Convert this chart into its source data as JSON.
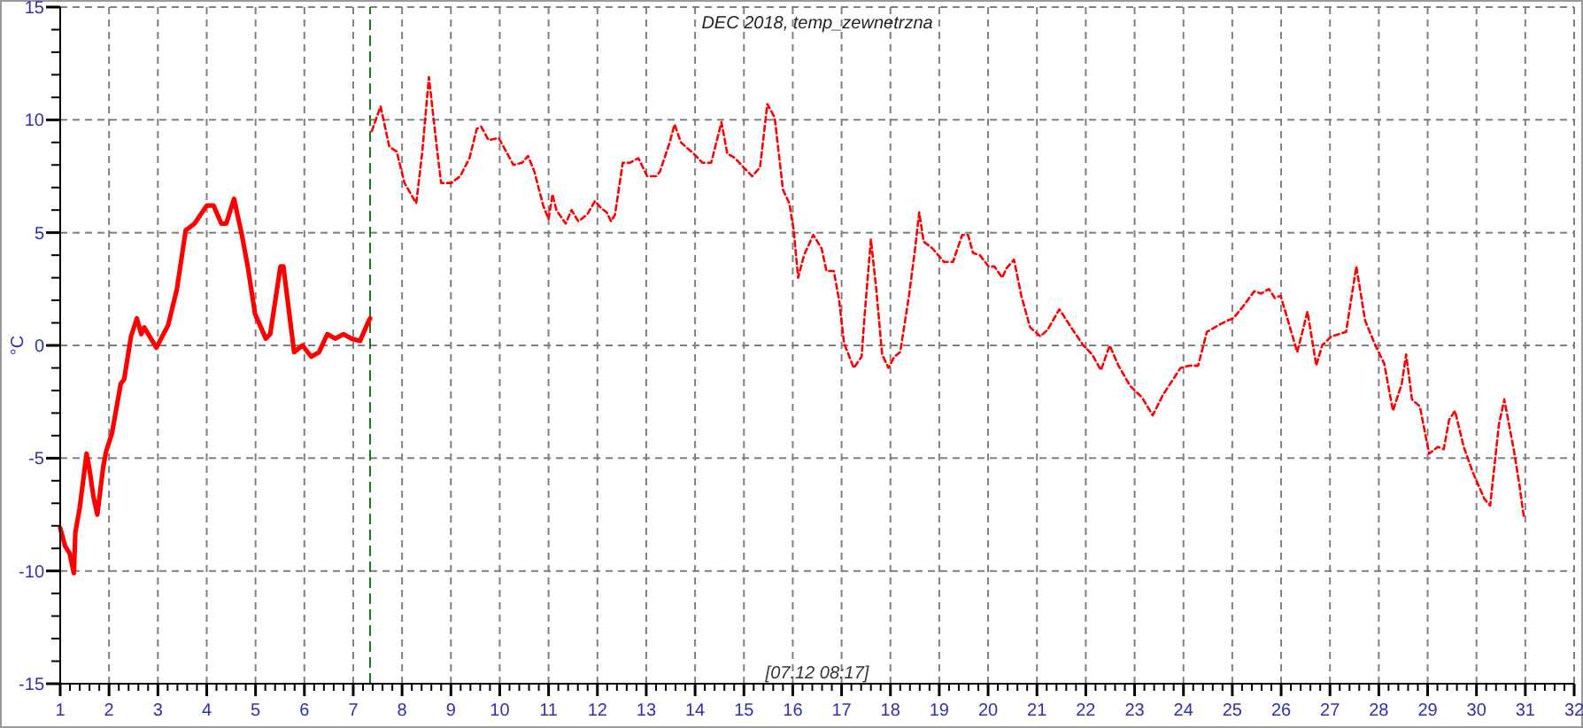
{
  "chart_data": {
    "type": "line",
    "title": "DEC 2018, temp_zewnetrzna",
    "ylabel": "°C",
    "xlim": [
      1,
      32
    ],
    "ylim": [
      -15,
      15
    ],
    "xticks": [
      1,
      {
        "value": 1.2,
        "label": null
      },
      {
        "value": 1.4,
        "label": null
      },
      {
        "value": 1.6,
        "label": null
      },
      {
        "value": 1.8,
        "label": null
      },
      2,
      {
        "value": 2.2,
        "label": null
      },
      {
        "value": 2.4,
        "label": null
      },
      {
        "value": 2.6,
        "label": null
      },
      {
        "value": 2.8,
        "label": null
      },
      3,
      {
        "value": 3.2,
        "label": null
      },
      {
        "value": 3.4,
        "label": null
      },
      {
        "value": 3.6,
        "label": null
      },
      {
        "value": 3.8,
        "label": null
      },
      4,
      {
        "value": 4.2,
        "label": null
      },
      {
        "value": 4.4,
        "label": null
      },
      {
        "value": 4.6,
        "label": null
      },
      {
        "value": 4.8,
        "label": null
      },
      5,
      {
        "value": 5.2,
        "label": null
      },
      {
        "value": 5.4,
        "label": null
      },
      {
        "value": 5.6,
        "label": null
      },
      {
        "value": 5.8,
        "label": null
      },
      6,
      {
        "value": 6.2,
        "label": null
      },
      {
        "value": 6.4,
        "label": null
      },
      {
        "value": 6.6,
        "label": null
      },
      {
        "value": 6.8,
        "label": null
      },
      7,
      {
        "value": 7.2,
        "label": null
      },
      {
        "value": 7.4,
        "label": null
      },
      {
        "value": 7.6,
        "label": null
      },
      {
        "value": 7.8,
        "label": null
      },
      8,
      {
        "value": 8.2,
        "label": null
      },
      {
        "value": 8.4,
        "label": null
      },
      {
        "value": 8.6,
        "label": null
      },
      {
        "value": 8.8,
        "label": null
      },
      9,
      {
        "value": 9.2,
        "label": null
      },
      {
        "value": 9.4,
        "label": null
      },
      {
        "value": 9.6,
        "label": null
      },
      {
        "value": 9.8,
        "label": null
      },
      10,
      {
        "value": 10.2,
        "label": null
      },
      {
        "value": 10.4,
        "label": null
      },
      {
        "value": 10.6,
        "label": null
      },
      {
        "value": 10.8,
        "label": null
      },
      11,
      {
        "value": 11.2,
        "label": null
      },
      {
        "value": 11.4,
        "label": null
      },
      {
        "value": 11.6,
        "label": null
      },
      {
        "value": 11.8,
        "label": null
      },
      12,
      {
        "value": 12.2,
        "label": null
      },
      {
        "value": 12.4,
        "label": null
      },
      {
        "value": 12.6,
        "label": null
      },
      {
        "value": 12.8,
        "label": null
      },
      13,
      {
        "value": 13.2,
        "label": null
      },
      {
        "value": 13.4,
        "label": null
      },
      {
        "value": 13.6,
        "label": null
      },
      {
        "value": 13.8,
        "label": null
      },
      14,
      {
        "value": 14.2,
        "label": null
      },
      {
        "value": 14.4,
        "label": null
      },
      {
        "value": 14.6,
        "label": null
      },
      {
        "value": 14.8,
        "label": null
      },
      15,
      {
        "value": 15.2,
        "label": null
      },
      {
        "value": 15.4,
        "label": null
      },
      {
        "value": 15.6,
        "label": null
      },
      {
        "value": 15.8,
        "label": null
      },
      16,
      {
        "value": 16.2,
        "label": null
      },
      {
        "value": 16.4,
        "label": null
      },
      {
        "value": 16.6,
        "label": null
      },
      {
        "value": 16.8,
        "label": null
      },
      17,
      {
        "value": 17.2,
        "label": null
      },
      {
        "value": 17.4,
        "label": null
      },
      {
        "value": 17.6,
        "label": null
      },
      {
        "value": 17.8,
        "label": null
      },
      18,
      {
        "value": 18.2,
        "label": null
      },
      {
        "value": 18.4,
        "label": null
      },
      {
        "value": 18.6,
        "label": null
      },
      {
        "value": 18.8,
        "label": null
      },
      19,
      {
        "value": 19.2,
        "label": null
      },
      {
        "value": 19.4,
        "label": null
      },
      {
        "value": 19.6,
        "label": null
      },
      {
        "value": 19.8,
        "label": null
      },
      20,
      {
        "value": 20.2,
        "label": null
      },
      {
        "value": 20.4,
        "label": null
      },
      {
        "value": 20.6,
        "label": null
      },
      {
        "value": 20.8,
        "label": null
      },
      21,
      {
        "value": 21.2,
        "label": null
      },
      {
        "value": 21.4,
        "label": null
      },
      {
        "value": 21.6,
        "label": null
      },
      {
        "value": 21.8,
        "label": null
      },
      22,
      {
        "value": 22.2,
        "label": null
      },
      {
        "value": 22.4,
        "label": null
      },
      {
        "value": 22.6,
        "label": null
      },
      {
        "value": 22.8,
        "label": null
      },
      23,
      {
        "value": 23.2,
        "label": null
      },
      {
        "value": 23.4,
        "label": null
      },
      {
        "value": 23.6,
        "label": null
      },
      {
        "value": 23.8,
        "label": null
      },
      24,
      {
        "value": 24.2,
        "label": null
      },
      {
        "value": 24.4,
        "label": null
      },
      {
        "value": 24.6,
        "label": null
      },
      {
        "value": 24.8,
        "label": null
      },
      25,
      {
        "value": 25.2,
        "label": null
      },
      {
        "value": 25.4,
        "label": null
      },
      {
        "value": 25.6,
        "label": null
      },
      {
        "value": 25.8,
        "label": null
      },
      26,
      {
        "value": 26.2,
        "label": null
      },
      {
        "value": 26.4,
        "label": null
      },
      {
        "value": 26.6,
        "label": null
      },
      {
        "value": 26.8,
        "label": null
      },
      27,
      {
        "value": 27.2,
        "label": null
      },
      {
        "value": 27.4,
        "label": null
      },
      {
        "value": 27.6,
        "label": null
      },
      {
        "value": 27.8,
        "label": null
      },
      28,
      {
        "value": 28.2,
        "label": null
      },
      {
        "value": 28.4,
        "label": null
      },
      {
        "value": 28.6,
        "label": null
      },
      {
        "value": 28.8,
        "label": null
      },
      29,
      {
        "value": 29.2,
        "label": null
      },
      {
        "value": 29.4,
        "label": null
      },
      {
        "value": 29.6,
        "label": null
      },
      {
        "value": 29.8,
        "label": null
      },
      30,
      {
        "value": 30.2,
        "label": null
      },
      {
        "value": 30.4,
        "label": null
      },
      {
        "value": 30.6,
        "label": null
      },
      {
        "value": 30.8,
        "label": null
      },
      31,
      {
        "value": 31.2,
        "label": null
      },
      {
        "value": 31.4,
        "label": null
      },
      {
        "value": 31.6,
        "label": null
      },
      {
        "value": 31.8,
        "label": null
      },
      32
    ],
    "yticks": [
      -15,
      {
        "value": -14,
        "label": null
      },
      {
        "value": -13,
        "label": null
      },
      {
        "value": -12,
        "label": null
      },
      {
        "value": -11,
        "label": null
      },
      -10,
      {
        "value": -9,
        "label": null
      },
      {
        "value": -8,
        "label": null
      },
      {
        "value": -7,
        "label": null
      },
      {
        "value": -6,
        "label": null
      },
      -5,
      {
        "value": -4,
        "label": null
      },
      {
        "value": -3,
        "label": null
      },
      {
        "value": -2,
        "label": null
      },
      {
        "value": -1,
        "label": null
      },
      0,
      {
        "value": 1,
        "label": null
      },
      {
        "value": 2,
        "label": null
      },
      {
        "value": 3,
        "label": null
      },
      {
        "value": 4,
        "label": null
      },
      5,
      {
        "value": 6,
        "label": null
      },
      {
        "value": 7,
        "label": null
      },
      {
        "value": 8,
        "label": null
      },
      {
        "value": 9,
        "label": null
      },
      10,
      {
        "value": 11,
        "label": null
      },
      {
        "value": 12,
        "label": null
      },
      {
        "value": 13,
        "label": null
      },
      {
        "value": 14,
        "label": null
      },
      15
    ],
    "grid": true,
    "ref_lines": [
      {
        "axis": "x",
        "value": 7.345,
        "color": "#1a7a1a",
        "line_style": "dashed"
      }
    ],
    "annotations": [
      "[07.12 08:17]"
    ],
    "series": [
      {
        "color": "#ff0000",
        "line_style": "solid",
        "x": [
          1.0,
          1.1,
          1.19,
          1.28,
          1.31,
          1.4,
          1.54,
          1.6,
          1.68,
          1.76,
          1.88,
          1.94,
          2.06,
          2.24,
          2.31,
          2.45,
          2.57,
          2.66,
          2.72,
          2.97,
          3.21,
          3.39,
          3.57,
          3.75,
          4.0,
          4.14,
          4.3,
          4.4,
          4.56,
          4.72,
          4.84,
          4.99,
          5.21,
          5.3,
          5.51,
          5.57,
          5.79,
          5.96,
          6.14,
          6.3,
          6.47,
          6.63,
          6.8,
          6.96,
          7.14,
          7.32,
          7.345
        ],
        "values": [
          -8.1,
          -8.9,
          -9.2,
          -10.1,
          -8.3,
          -7.2,
          -4.8,
          -5.5,
          -6.7,
          -7.5,
          -5.4,
          -4.7,
          -3.9,
          -1.7,
          -1.5,
          0.4,
          1.2,
          0.5,
          0.8,
          -0.1,
          0.9,
          2.5,
          5.1,
          5.4,
          6.2,
          6.2,
          5.4,
          5.4,
          6.5,
          4.9,
          3.5,
          1.4,
          0.3,
          0.5,
          3.5,
          3.5,
          -0.3,
          0,
          -0.5,
          -0.3,
          0.5,
          0.3,
          0.5,
          0.3,
          0.2,
          1.1,
          1.2
        ]
      },
      {
        "color": "#ff0000",
        "line_style": "dashed",
        "x": [
          7.38,
          7.56,
          7.74,
          7.89,
          8.05,
          8.29,
          8.41,
          8.55,
          8.71,
          8.8,
          9.01,
          9.19,
          9.38,
          9.53,
          9.62,
          9.77,
          9.98,
          10.28,
          10.46,
          10.58,
          10.71,
          10.89,
          11.0,
          11.08,
          11.16,
          11.35,
          11.47,
          11.61,
          11.79,
          11.95,
          12.07,
          12.19,
          12.28,
          12.36,
          12.52,
          12.67,
          12.84,
          13.02,
          13.2,
          13.28,
          13.48,
          13.58,
          13.71,
          13.97,
          14.15,
          14.33,
          14.54,
          14.66,
          14.82,
          14.99,
          15.17,
          15.33,
          15.48,
          15.63,
          15.8,
          15.93,
          16.02,
          16.11,
          16.23,
          16.42,
          16.59,
          16.69,
          16.84,
          16.95,
          17.05,
          17.25,
          17.41,
          17.47,
          17.6,
          17.71,
          17.83,
          17.96,
          18.08,
          18.2,
          18.38,
          18.5,
          18.59,
          18.68,
          18.86,
          19.1,
          19.28,
          19.47,
          19.59,
          19.69,
          19.83,
          20.01,
          20.13,
          20.29,
          20.37,
          20.53,
          20.68,
          20.86,
          21.07,
          21.22,
          21.46,
          21.7,
          21.95,
          22.13,
          22.31,
          22.49,
          22.67,
          22.91,
          23.15,
          23.37,
          23.58,
          23.76,
          23.94,
          24.12,
          24.3,
          24.48,
          24.72,
          24.9,
          25.02,
          25.21,
          25.45,
          25.59,
          25.75,
          25.87,
          25.99,
          26.14,
          26.33,
          26.54,
          26.72,
          26.84,
          27.03,
          27.33,
          27.54,
          27.72,
          27.93,
          28.11,
          28.29,
          28.47,
          28.56,
          28.68,
          28.84,
          29.03,
          29.21,
          29.33,
          29.44,
          29.56,
          29.74,
          29.92,
          30.16,
          30.28,
          30.46,
          30.57,
          30.77,
          30.88,
          30.97
        ],
        "values": [
          9.5,
          10.6,
          8.8,
          8.6,
          7.2,
          6.3,
          8.5,
          11.9,
          8.8,
          7.2,
          7.2,
          7.5,
          8.3,
          9.6,
          9.7,
          9.1,
          9.2,
          8.0,
          8.1,
          8.4,
          7.7,
          6.2,
          5.6,
          6.7,
          6.0,
          5.4,
          6.0,
          5.5,
          5.8,
          6.4,
          6.1,
          5.9,
          5.5,
          5.8,
          8.1,
          8.1,
          8.3,
          7.5,
          7.5,
          7.7,
          9.0,
          9.8,
          9.0,
          8.5,
          8.1,
          8.1,
          9.9,
          8.5,
          8.3,
          7.9,
          7.5,
          7.9,
          10.7,
          10.1,
          6.9,
          6.3,
          5.1,
          3.0,
          4.0,
          4.9,
          4.3,
          3.3,
          3.3,
          2.0,
          0.1,
          -1.0,
          -0.5,
          1.3,
          4.7,
          2.5,
          -0.4,
          -1.0,
          -0.5,
          -0.3,
          2.2,
          4.2,
          5.9,
          4.6,
          4.3,
          3.7,
          3.7,
          4.9,
          4.9,
          4.1,
          4.0,
          3.5,
          3.5,
          3.0,
          3.4,
          3.8,
          2.2,
          0.8,
          0.4,
          0.7,
          1.6,
          0.8,
          0.0,
          -0.4,
          -1.1,
          0.0,
          -0.9,
          -1.8,
          -2.3,
          -3.1,
          -2.2,
          -1.6,
          -1.0,
          -0.9,
          -0.9,
          0.6,
          0.9,
          1.1,
          1.2,
          1.7,
          2.4,
          2.3,
          2.5,
          2.1,
          2.2,
          1.1,
          -0.3,
          1.5,
          -0.9,
          0.0,
          0.4,
          0.6,
          3.5,
          1.1,
          0.0,
          -0.8,
          -2.9,
          -1.7,
          -0.4,
          -2.4,
          -2.7,
          -4.8,
          -4.5,
          -4.6,
          -3.3,
          -2.9,
          -4.5,
          -5.6,
          -6.8,
          -7.1,
          -3.5,
          -2.4,
          -4.7,
          -6.2,
          -7.6
        ]
      }
    ]
  }
}
